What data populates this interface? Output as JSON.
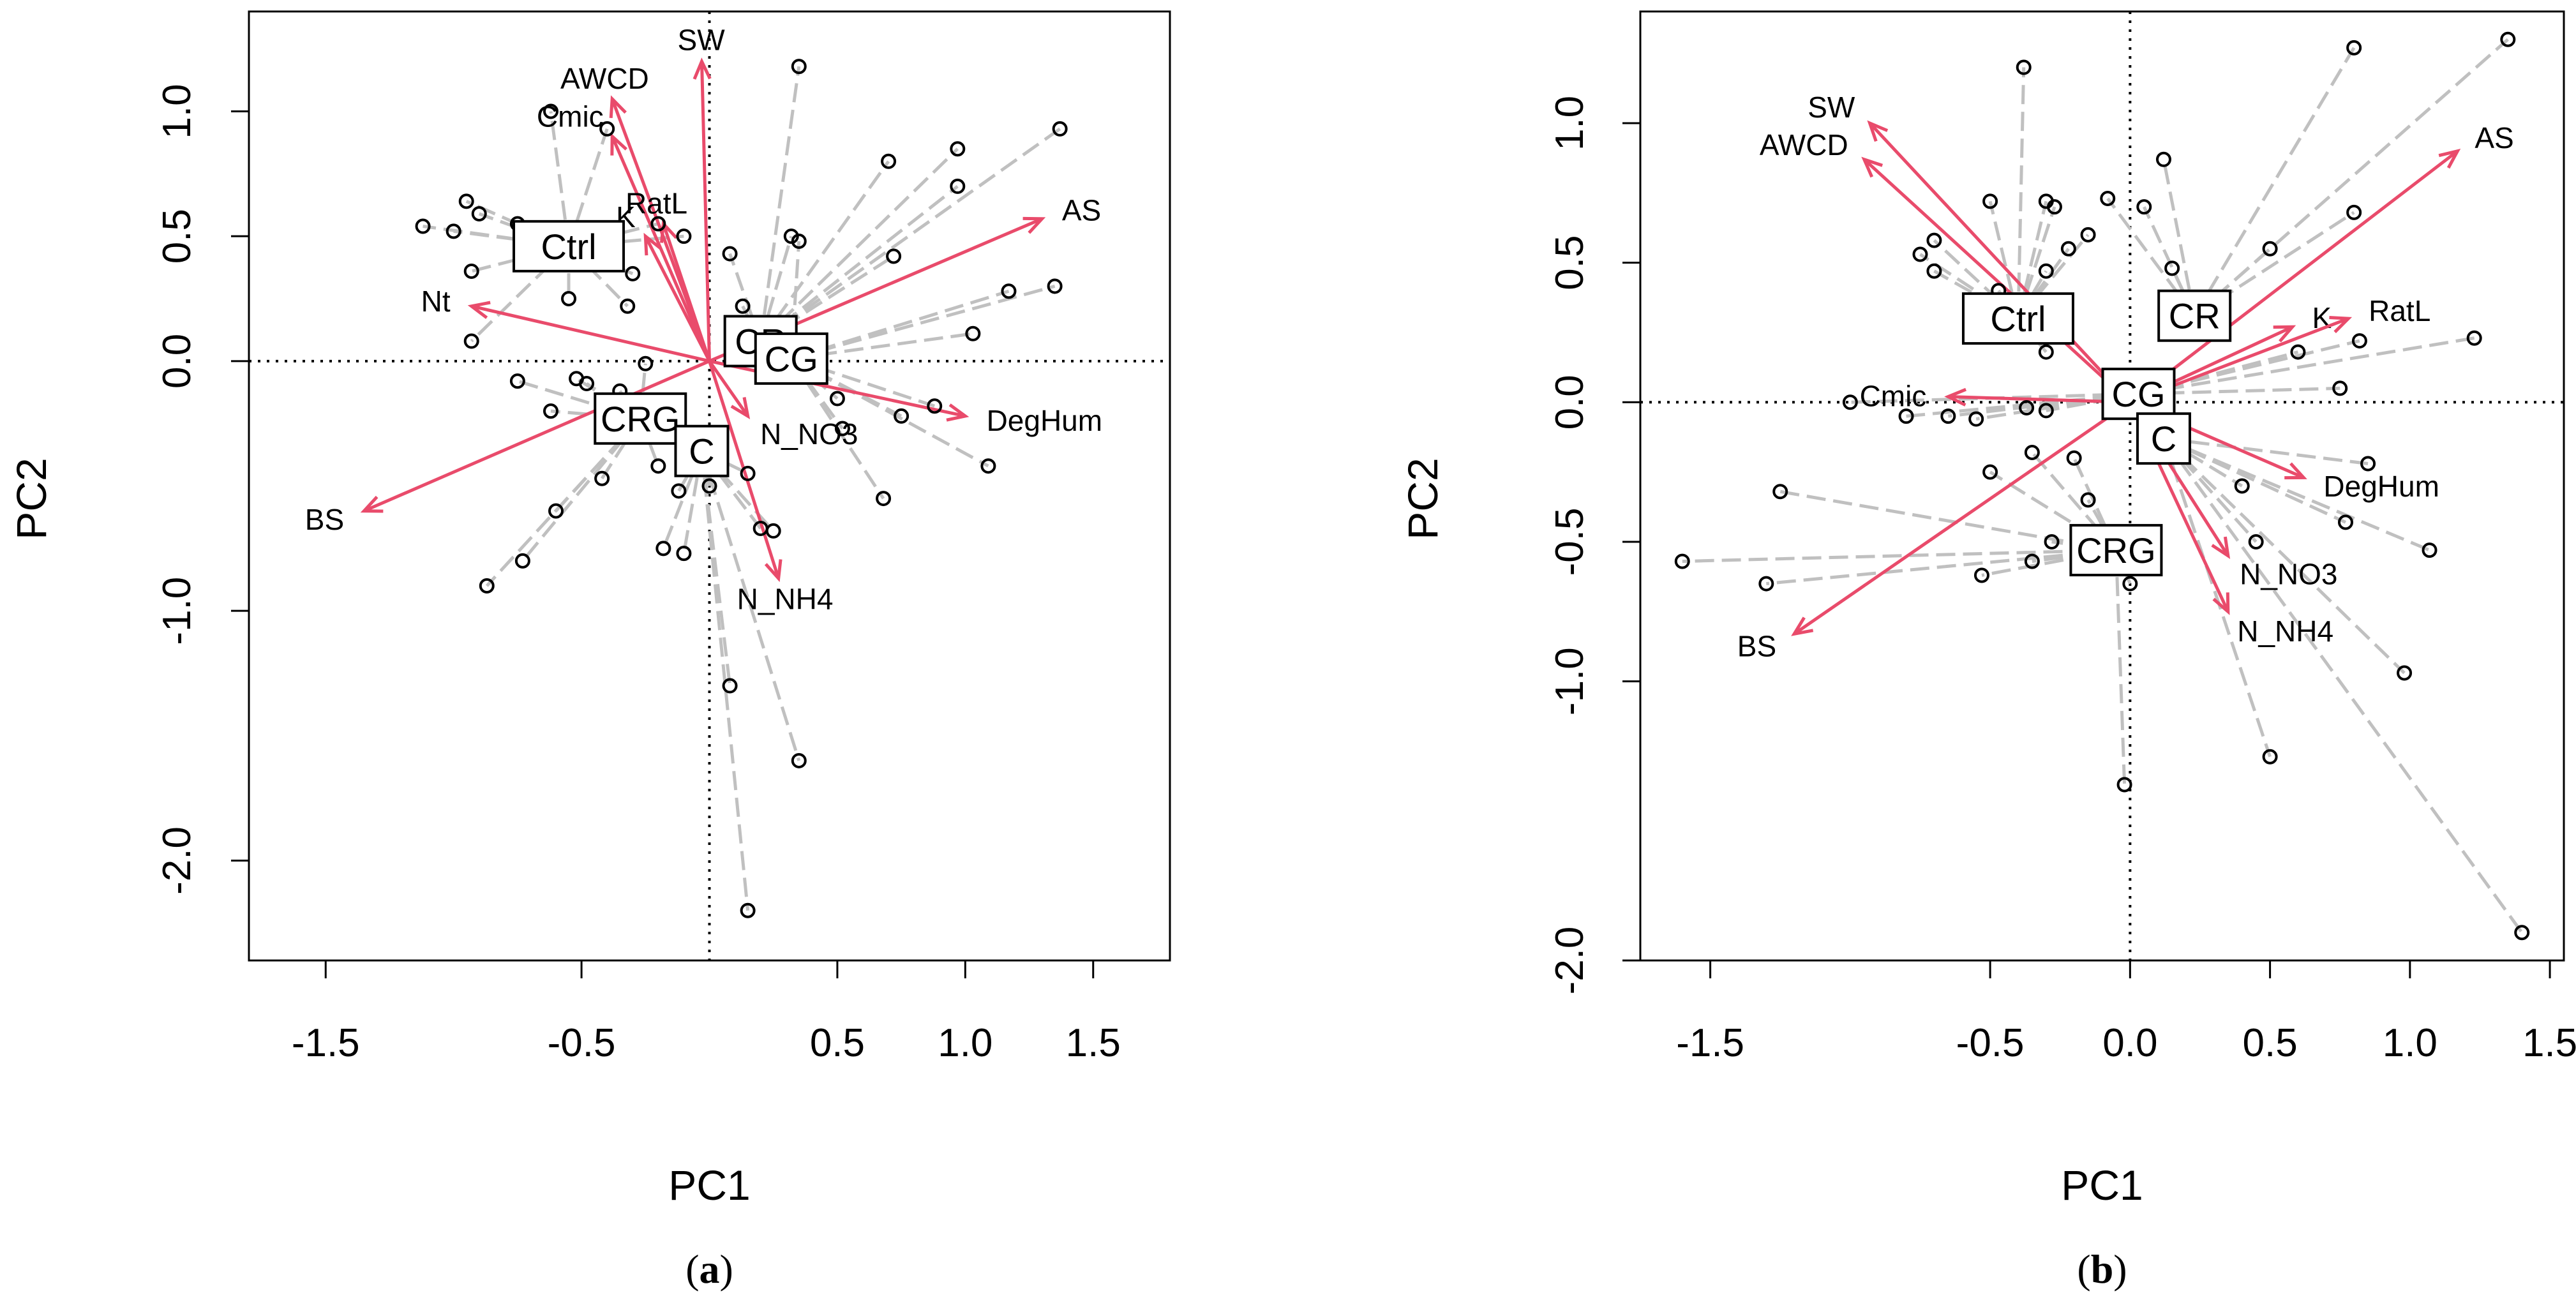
{
  "colors": {
    "arrow": "#e94b6b",
    "connector": "#c0c0c0",
    "point": "#000000",
    "reference": "#000000"
  },
  "chart_data": [
    {
      "type": "scatter",
      "subtype": "pca-biplot",
      "caption": "(a)",
      "xlabel": "PC1",
      "ylabel": "PC2",
      "xlim": [
        -1.8,
        1.8
      ],
      "ylim": [
        -2.4,
        1.4
      ],
      "xticks": [
        -1.5,
        -0.5,
        0.5,
        1.0,
        1.5
      ],
      "xtick_labels": [
        "-1.5",
        "-0.5",
        "0.5",
        "1.0",
        "1.5"
      ],
      "yticks": [
        -2.0,
        -1.0,
        0.0,
        0.5,
        1.0
      ],
      "ytick_labels": [
        "-2.0",
        "-1.0",
        "0.0",
        "0.5",
        "1.0"
      ],
      "arrows": [
        {
          "label": "SW",
          "x": -0.03,
          "y": 1.2
        },
        {
          "label": "AWCD",
          "x": -0.38,
          "y": 1.05
        },
        {
          "label": "Cmic",
          "x": -0.38,
          "y": 0.9
        },
        {
          "label": "K",
          "x": -0.25,
          "y": 0.5
        },
        {
          "label": "RatL",
          "x": -0.18,
          "y": 0.55
        },
        {
          "label": "AS",
          "x": 1.3,
          "y": 0.57
        },
        {
          "label": "Nt",
          "x": -0.93,
          "y": 0.22
        },
        {
          "label": "DegHum",
          "x": 1.0,
          "y": -0.22
        },
        {
          "label": "N_NO3",
          "x": 0.15,
          "y": -0.22
        },
        {
          "label": "N_NH4",
          "x": 0.27,
          "y": -0.87
        },
        {
          "label": "BS",
          "x": -1.35,
          "y": -0.6
        }
      ],
      "groups": [
        {
          "label": "Ctrl",
          "x": -0.55,
          "y": 0.46
        },
        {
          "label": "CR",
          "x": 0.2,
          "y": 0.08
        },
        {
          "label": "CG",
          "x": 0.32,
          "y": 0.01
        },
        {
          "label": "CRG",
          "x": -0.27,
          "y": -0.23
        },
        {
          "label": "C",
          "x": -0.03,
          "y": -0.36
        }
      ],
      "points": [
        {
          "x": -1.12,
          "y": 0.54,
          "g": "Ctrl"
        },
        {
          "x": -1.0,
          "y": 0.52,
          "g": "Ctrl"
        },
        {
          "x": -0.95,
          "y": 0.64,
          "g": "Ctrl"
        },
        {
          "x": -0.9,
          "y": 0.59,
          "g": "Ctrl"
        },
        {
          "x": -0.75,
          "y": 0.55,
          "g": "Ctrl"
        },
        {
          "x": -0.62,
          "y": 1.0,
          "g": "Ctrl"
        },
        {
          "x": -0.4,
          "y": 0.93,
          "g": "Ctrl"
        },
        {
          "x": -0.93,
          "y": 0.36,
          "g": "Ctrl"
        },
        {
          "x": -0.55,
          "y": 0.25,
          "g": "Ctrl"
        },
        {
          "x": -0.3,
          "y": 0.35,
          "g": "Ctrl"
        },
        {
          "x": -0.32,
          "y": 0.22,
          "g": "Ctrl"
        },
        {
          "x": -0.2,
          "y": 0.55,
          "g": "Ctrl"
        },
        {
          "x": -0.93,
          "y": 0.08,
          "g": "Ctrl"
        },
        {
          "x": -0.1,
          "y": 0.5,
          "g": "Ctrl"
        },
        {
          "x": 0.08,
          "y": 0.43,
          "g": "CR"
        },
        {
          "x": 0.13,
          "y": 0.22,
          "g": "CR"
        },
        {
          "x": 0.32,
          "y": 0.5,
          "g": "CR"
        },
        {
          "x": 0.7,
          "y": 0.8,
          "g": "CR"
        },
        {
          "x": 0.97,
          "y": 0.85,
          "g": "CR"
        },
        {
          "x": 0.97,
          "y": 0.7,
          "g": "CR"
        },
        {
          "x": 1.37,
          "y": 0.93,
          "g": "CR"
        },
        {
          "x": 0.35,
          "y": 1.18,
          "g": "CR"
        },
        {
          "x": 0.72,
          "y": 0.42,
          "g": "CR"
        },
        {
          "x": 0.2,
          "y": 0.12,
          "g": "CR"
        },
        {
          "x": 1.35,
          "y": 0.3,
          "g": "CG"
        },
        {
          "x": 1.17,
          "y": 0.28,
          "g": "CG"
        },
        {
          "x": 1.03,
          "y": 0.11,
          "g": "CG"
        },
        {
          "x": 0.88,
          "y": -0.18,
          "g": "CG"
        },
        {
          "x": 0.75,
          "y": -0.22,
          "g": "CG"
        },
        {
          "x": 1.09,
          "y": -0.42,
          "g": "CG"
        },
        {
          "x": 0.68,
          "y": -0.55,
          "g": "CG"
        },
        {
          "x": 0.52,
          "y": -0.27,
          "g": "CG"
        },
        {
          "x": 0.5,
          "y": -0.15,
          "g": "CG"
        },
        {
          "x": 0.35,
          "y": 0.48,
          "g": "CG"
        },
        {
          "x": -0.75,
          "y": -0.08,
          "g": "CRG"
        },
        {
          "x": -0.52,
          "y": -0.07,
          "g": "CRG"
        },
        {
          "x": -0.48,
          "y": -0.09,
          "g": "CRG"
        },
        {
          "x": -0.35,
          "y": -0.12,
          "g": "CRG"
        },
        {
          "x": -0.62,
          "y": -0.2,
          "g": "CRG"
        },
        {
          "x": -0.42,
          "y": -0.47,
          "g": "CRG"
        },
        {
          "x": -0.6,
          "y": -0.6,
          "g": "CRG"
        },
        {
          "x": -0.73,
          "y": -0.8,
          "g": "CRG"
        },
        {
          "x": -0.87,
          "y": -0.9,
          "g": "CRG"
        },
        {
          "x": -0.25,
          "y": -0.01,
          "g": "CRG"
        },
        {
          "x": -0.2,
          "y": -0.42,
          "g": "CRG"
        },
        {
          "x": -0.18,
          "y": -0.75,
          "g": "C"
        },
        {
          "x": -0.1,
          "y": -0.77,
          "g": "C"
        },
        {
          "x": -0.12,
          "y": -0.52,
          "g": "C"
        },
        {
          "x": 0.0,
          "y": -0.5,
          "g": "C"
        },
        {
          "x": 0.2,
          "y": -0.67,
          "g": "C"
        },
        {
          "x": 0.25,
          "y": -0.68,
          "g": "C"
        },
        {
          "x": 0.08,
          "y": -1.3,
          "g": "C"
        },
        {
          "x": 0.35,
          "y": -1.6,
          "g": "C"
        },
        {
          "x": 0.15,
          "y": -2.2,
          "g": "C"
        },
        {
          "x": 0.0,
          "y": -0.35,
          "g": "C"
        },
        {
          "x": 0.15,
          "y": -0.45,
          "g": "C"
        }
      ]
    },
    {
      "type": "scatter",
      "subtype": "pca-biplot",
      "caption": "(b)",
      "xlabel": "PC1",
      "ylabel": "PC2",
      "xlim": [
        -1.75,
        1.55
      ],
      "ylim": [
        -2.0,
        1.4
      ],
      "xticks": [
        -1.5,
        -0.5,
        0.0,
        0.5,
        1.0,
        1.5
      ],
      "xtick_labels": [
        "-1.5",
        "-0.5",
        "0.0",
        "0.5",
        "1.0",
        "1.5"
      ],
      "yticks": [
        -2.0,
        -1.0,
        -0.5,
        0.0,
        0.5,
        1.0
      ],
      "ytick_labels": [
        "-2.0",
        "-1.0",
        "-0.5",
        "0.0",
        "0.5",
        "1.0"
      ],
      "arrows": [
        {
          "label": "SW",
          "x": -0.93,
          "y": 1.0
        },
        {
          "label": "AWCD",
          "x": -0.95,
          "y": 0.87
        },
        {
          "label": "AS",
          "x": 1.17,
          "y": 0.9
        },
        {
          "label": "K",
          "x": 0.58,
          "y": 0.27
        },
        {
          "label": "RatL",
          "x": 0.78,
          "y": 0.3
        },
        {
          "label": "Cmic",
          "x": -0.65,
          "y": 0.02
        },
        {
          "label": "DegHum",
          "x": 0.62,
          "y": -0.27
        },
        {
          "label": "N_NO3",
          "x": 0.35,
          "y": -0.55
        },
        {
          "label": "N_NH4",
          "x": 0.35,
          "y": -0.75
        },
        {
          "label": "BS",
          "x": -1.2,
          "y": -0.83
        }
      ],
      "groups": [
        {
          "label": "Ctrl",
          "x": -0.4,
          "y": 0.3
        },
        {
          "label": "CR",
          "x": 0.23,
          "y": 0.31
        },
        {
          "label": "CG",
          "x": 0.03,
          "y": 0.03
        },
        {
          "label": "C",
          "x": 0.12,
          "y": -0.13
        },
        {
          "label": "CRG",
          "x": -0.05,
          "y": -0.53
        }
      ],
      "points": [
        {
          "x": -0.75,
          "y": 0.53,
          "g": "Ctrl"
        },
        {
          "x": -0.7,
          "y": 0.58,
          "g": "Ctrl"
        },
        {
          "x": -0.7,
          "y": 0.47,
          "g": "Ctrl"
        },
        {
          "x": -0.5,
          "y": 0.72,
          "g": "Ctrl"
        },
        {
          "x": -0.3,
          "y": 0.72,
          "g": "Ctrl"
        },
        {
          "x": -0.27,
          "y": 0.7,
          "g": "Ctrl"
        },
        {
          "x": -0.22,
          "y": 0.55,
          "g": "Ctrl"
        },
        {
          "x": -0.15,
          "y": 0.6,
          "g": "Ctrl"
        },
        {
          "x": -0.3,
          "y": 0.47,
          "g": "Ctrl"
        },
        {
          "x": -0.47,
          "y": 0.4,
          "g": "Ctrl"
        },
        {
          "x": -0.38,
          "y": 1.2,
          "g": "Ctrl"
        },
        {
          "x": -0.3,
          "y": 0.18,
          "g": "Ctrl"
        },
        {
          "x": 0.05,
          "y": 0.7,
          "g": "CR"
        },
        {
          "x": 0.12,
          "y": 0.87,
          "g": "CR"
        },
        {
          "x": 0.8,
          "y": 1.27,
          "g": "CR"
        },
        {
          "x": 0.8,
          "y": 0.68,
          "g": "CR"
        },
        {
          "x": 0.5,
          "y": 0.55,
          "g": "CR"
        },
        {
          "x": 1.35,
          "y": 1.3,
          "g": "CR"
        },
        {
          "x": -0.08,
          "y": 0.73,
          "g": "CR"
        },
        {
          "x": 0.15,
          "y": 0.48,
          "g": "CR"
        },
        {
          "x": 1.23,
          "y": 0.23,
          "g": "CG"
        },
        {
          "x": 0.82,
          "y": 0.22,
          "g": "CG"
        },
        {
          "x": 0.75,
          "y": 0.05,
          "g": "CG"
        },
        {
          "x": -0.65,
          "y": -0.05,
          "g": "CG"
        },
        {
          "x": -0.55,
          "y": -0.06,
          "g": "CG"
        },
        {
          "x": -0.37,
          "y": -0.02,
          "g": "CG"
        },
        {
          "x": -0.3,
          "y": -0.03,
          "g": "CG"
        },
        {
          "x": -1.0,
          "y": 0.0,
          "g": "CG"
        },
        {
          "x": -0.8,
          "y": -0.05,
          "g": "CG"
        },
        {
          "x": 0.6,
          "y": 0.18,
          "g": "CG"
        },
        {
          "x": 0.85,
          "y": -0.22,
          "g": "C"
        },
        {
          "x": 0.77,
          "y": -0.43,
          "g": "C"
        },
        {
          "x": 1.07,
          "y": -0.53,
          "g": "C"
        },
        {
          "x": 0.98,
          "y": -0.97,
          "g": "C"
        },
        {
          "x": 1.4,
          "y": -1.9,
          "g": "C"
        },
        {
          "x": 0.5,
          "y": -1.27,
          "g": "C"
        },
        {
          "x": 0.45,
          "y": -0.5,
          "g": "C"
        },
        {
          "x": 0.4,
          "y": -0.3,
          "g": "C"
        },
        {
          "x": -1.6,
          "y": -0.57,
          "g": "CRG"
        },
        {
          "x": -1.3,
          "y": -0.65,
          "g": "CRG"
        },
        {
          "x": -1.25,
          "y": -0.32,
          "g": "CRG"
        },
        {
          "x": -0.53,
          "y": -0.62,
          "g": "CRG"
        },
        {
          "x": -0.5,
          "y": -0.25,
          "g": "CRG"
        },
        {
          "x": -0.35,
          "y": -0.57,
          "g": "CRG"
        },
        {
          "x": -0.28,
          "y": -0.5,
          "g": "CRG"
        },
        {
          "x": -0.02,
          "y": -1.37,
          "g": "CRG"
        },
        {
          "x": 0.0,
          "y": -0.65,
          "g": "CRG"
        },
        {
          "x": -0.2,
          "y": -0.2,
          "g": "CRG"
        },
        {
          "x": -0.15,
          "y": -0.35,
          "g": "CRG"
        },
        {
          "x": -0.35,
          "y": -0.18,
          "g": "CRG"
        }
      ]
    }
  ]
}
